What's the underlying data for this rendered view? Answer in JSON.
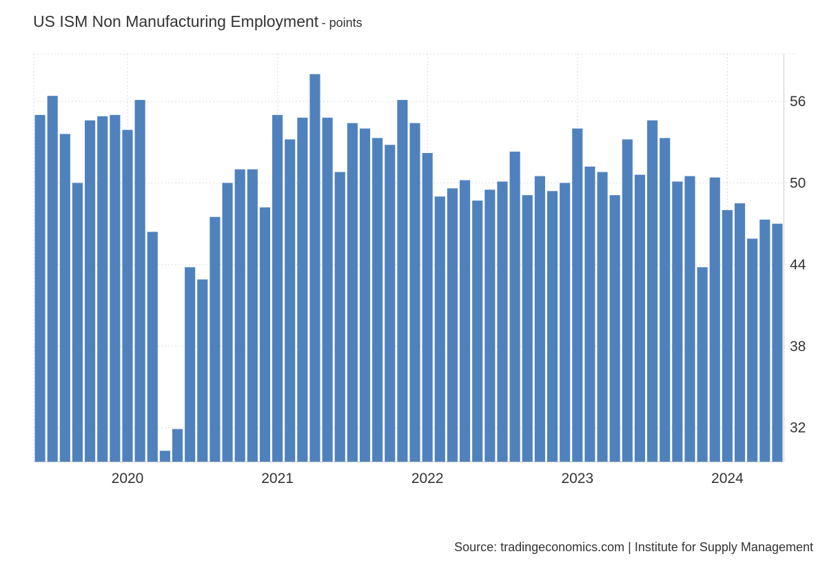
{
  "title": "US ISM Non Manufacturing Employment",
  "subtitle": "- points",
  "source": "Source: tradingeconomics.com | Institute for Supply Management",
  "colors": {
    "bar": "#4f81bd",
    "grid": "#d9d9d9",
    "text": "#333333"
  },
  "chart_data": {
    "type": "bar",
    "title": "US ISM Non Manufacturing Employment",
    "subtitle": "- points",
    "xlabel": "",
    "ylabel": "",
    "ylim": [
      29.5,
      59.5
    ],
    "y_ticks": [
      32,
      38,
      44,
      50,
      56
    ],
    "x_tick_labels": [
      "2020",
      "2021",
      "2022",
      "2023",
      "2024"
    ],
    "grid": true,
    "y_axis_position": "right",
    "series": [
      {
        "x": [
          "2019-06",
          "2019-07",
          "2019-08",
          "2019-09",
          "2019-10",
          "2019-11",
          "2019-12",
          "2020-01",
          "2020-02",
          "2020-03",
          "2020-04",
          "2020-05",
          "2020-06",
          "2020-07",
          "2020-08",
          "2020-09",
          "2020-10",
          "2020-11",
          "2020-12",
          "2021-01",
          "2021-02",
          "2021-03",
          "2021-04",
          "2021-05",
          "2021-06",
          "2021-07",
          "2021-08",
          "2021-09",
          "2021-10",
          "2021-11",
          "2021-12",
          "2022-01",
          "2022-02",
          "2022-03",
          "2022-04",
          "2022-05",
          "2022-06",
          "2022-07",
          "2022-08",
          "2022-09",
          "2022-10",
          "2022-11",
          "2022-12",
          "2023-01",
          "2023-02",
          "2023-03",
          "2023-04",
          "2023-05",
          "2023-06",
          "2023-07",
          "2023-08",
          "2023-09",
          "2023-10",
          "2023-11",
          "2023-12",
          "2024-01",
          "2024-02",
          "2024-03",
          "2024-04",
          "2024-05"
        ],
        "values": [
          55.0,
          56.4,
          53.6,
          50.0,
          54.6,
          54.9,
          55.0,
          53.9,
          56.1,
          46.4,
          30.3,
          31.9,
          43.8,
          42.9,
          47.5,
          50.0,
          51.0,
          51.0,
          48.2,
          55.0,
          53.2,
          54.8,
          58.0,
          54.8,
          50.8,
          54.4,
          54.0,
          53.3,
          52.8,
          56.1,
          54.4,
          52.2,
          49.0,
          49.6,
          50.2,
          48.7,
          49.5,
          50.1,
          52.3,
          49.1,
          50.5,
          49.4,
          50.0,
          54.0,
          51.2,
          50.8,
          49.1,
          53.2,
          50.6,
          54.6,
          53.3,
          50.1,
          50.5,
          43.8,
          50.4,
          48.0,
          48.5,
          45.9,
          47.3,
          47.0
        ]
      }
    ]
  }
}
